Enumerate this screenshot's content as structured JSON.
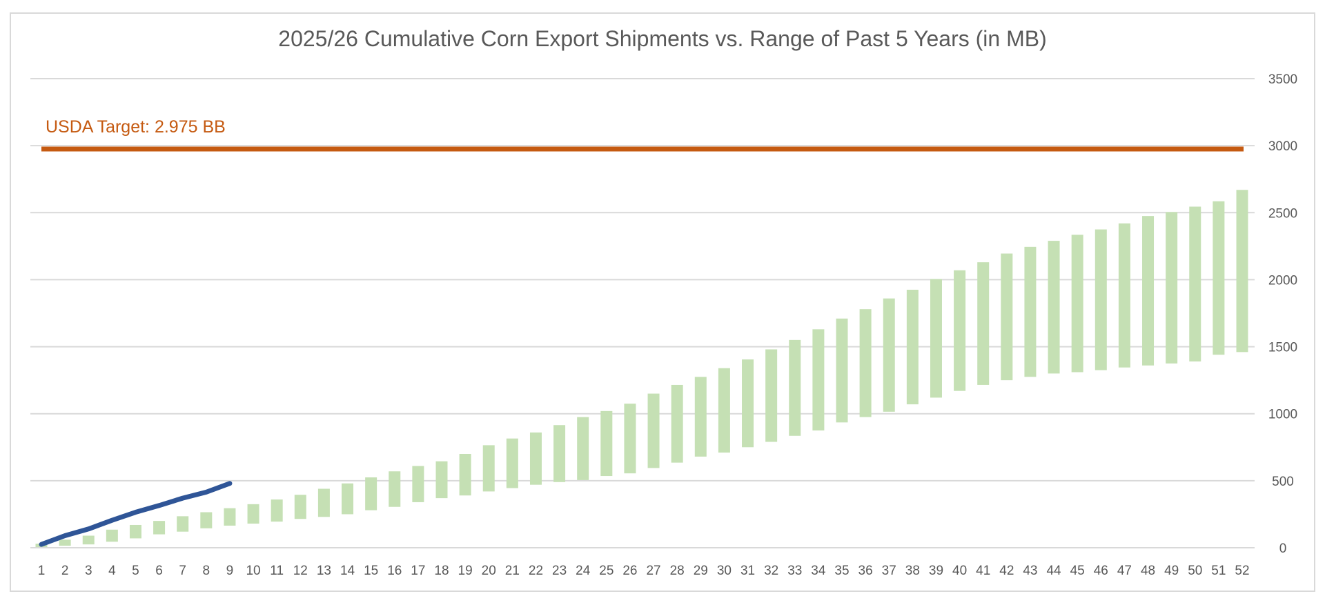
{
  "chart_data": {
    "type": "bar",
    "title": "2025/26 Cumulative Corn Export Shipments vs. Range of Past 5 Years (in MB)",
    "xlabel": "",
    "ylabel": "",
    "ylim": [
      0,
      3500
    ],
    "y_ticks": [
      0,
      500,
      1000,
      1500,
      2000,
      2500,
      3000,
      3500
    ],
    "y_axis_position": "right",
    "grid": true,
    "legend": "none",
    "categories": [
      "1",
      "2",
      "3",
      "4",
      "5",
      "6",
      "7",
      "8",
      "9",
      "10",
      "11",
      "12",
      "13",
      "14",
      "15",
      "16",
      "17",
      "18",
      "19",
      "20",
      "21",
      "22",
      "23",
      "24",
      "25",
      "26",
      "27",
      "28",
      "29",
      "30",
      "31",
      "32",
      "33",
      "34",
      "35",
      "36",
      "37",
      "38",
      "39",
      "40",
      "41",
      "42",
      "43",
      "44",
      "45",
      "46",
      "47",
      "48",
      "49",
      "50",
      "51",
      "52"
    ],
    "range_bars": {
      "low": [
        5,
        15,
        25,
        45,
        70,
        100,
        120,
        145,
        165,
        180,
        195,
        215,
        230,
        250,
        280,
        305,
        340,
        370,
        390,
        420,
        445,
        470,
        490,
        505,
        535,
        555,
        595,
        635,
        680,
        710,
        750,
        790,
        835,
        875,
        935,
        975,
        1015,
        1070,
        1120,
        1170,
        1215,
        1250,
        1275,
        1300,
        1310,
        1325,
        1345,
        1360,
        1375,
        1390,
        1440,
        1460
      ],
      "high": [
        30,
        60,
        90,
        135,
        170,
        200,
        235,
        265,
        295,
        325,
        360,
        395,
        440,
        480,
        525,
        570,
        610,
        645,
        700,
        765,
        815,
        860,
        915,
        975,
        1020,
        1075,
        1150,
        1215,
        1275,
        1340,
        1405,
        1480,
        1550,
        1630,
        1710,
        1780,
        1860,
        1925,
        2005,
        2070,
        2130,
        2195,
        2245,
        2290,
        2335,
        2375,
        2420,
        2475,
        2505,
        2545,
        2585,
        2670
      ],
      "color": "#c5e0b4"
    },
    "series": [
      {
        "x": [
          1,
          2,
          3,
          4,
          5,
          6,
          7,
          8,
          9
        ],
        "values": [
          25,
          90,
          140,
          205,
          265,
          315,
          370,
          415,
          480
        ],
        "color": "#2f5597"
      }
    ],
    "target": {
      "value": 2975,
      "label": "USDA Target: 2.975 BB",
      "color": "#c55a11"
    }
  }
}
